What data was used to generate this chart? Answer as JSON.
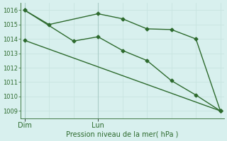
{
  "line1_x": [
    0,
    1,
    3,
    4,
    5,
    6,
    7,
    8
  ],
  "line1_y": [
    1016.0,
    1015.0,
    1015.75,
    1015.4,
    1014.7,
    1014.65,
    1014.0,
    1009.0
  ],
  "line2_x": [
    0,
    2,
    3,
    4,
    5,
    6,
    7,
    8
  ],
  "line2_y": [
    1016.0,
    1013.85,
    1014.15,
    1013.2,
    1012.5,
    1011.1,
    1010.1,
    1009.0
  ],
  "line3_x": [
    0,
    8
  ],
  "line3_y": [
    1013.9,
    1009.0
  ],
  "ylim": [
    1008.5,
    1016.5
  ],
  "yticks": [
    1009,
    1010,
    1011,
    1012,
    1013,
    1014,
    1015,
    1016
  ],
  "xlim": [
    -0.15,
    8.15
  ],
  "xtick_positions": [
    0,
    3
  ],
  "xtick_labels": [
    "Dim",
    "Lun"
  ],
  "xlabel": "Pression niveau de la mer( hPa )",
  "line_color": "#2d6a2d",
  "bg_color": "#d8f0ee",
  "grid_color_major": "#c8e4e0",
  "grid_color_minor": "#e0f0ee",
  "vline_color": "#aaccc8",
  "vline_positions": [
    0,
    3
  ],
  "marker": "D",
  "marker_size": 2.5,
  "linewidth": 1.0,
  "ylabel_fontsize": 7,
  "ytick_fontsize": 6,
  "xtick_fontsize": 7
}
